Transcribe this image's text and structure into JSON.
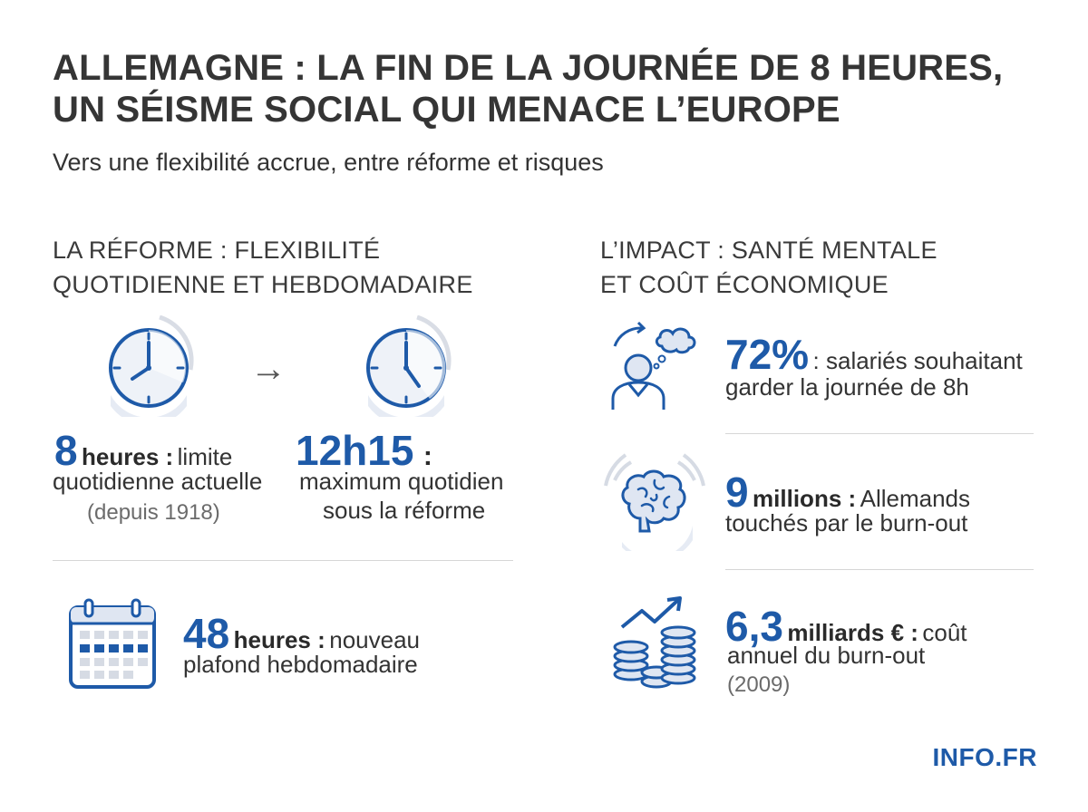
{
  "header": {
    "title_line1": "ALLEMAGNE : LA FIN DE LA JOURNÉE DE 8 HEURES,",
    "title_line2": "UN SÉISME SOCIAL QUI MENACE L’EUROPE",
    "subtitle": "Vers une flexibilité accrue, entre réforme et risques"
  },
  "left": {
    "heading_line1": "LA RÉFORME : FLEXIBILITÉ",
    "heading_line2": "QUOTIDIENNE ET HEBDOMADAIRE",
    "arrow": "→",
    "current": {
      "value": "8",
      "unit": "heures :",
      "text1": "limite",
      "text2": "quotidienne actuelle",
      "note": "(depuis 1918)"
    },
    "reform": {
      "value": "12h15",
      "sep": ":",
      "text1": "maximum quotidien",
      "text2": "sous la réforme"
    },
    "weekly": {
      "value": "48",
      "unit": "heures :",
      "text1": "nouveau",
      "text2": "plafond hebdomadaire"
    }
  },
  "right": {
    "heading_line1": "L’IMPACT : SANTÉ MENTALE",
    "heading_line2": "ET COÛT ÉCONOMIQUE",
    "stat1": {
      "value": "72%",
      "text1": ": salariés souhaitant",
      "text2": "garder la journée de 8h"
    },
    "stat2": {
      "value": "9",
      "unit": "millions :",
      "text1": "Allemands",
      "text2": "touchés par le burn-out"
    },
    "stat3": {
      "value": "6,3",
      "unit": "milliards € :",
      "text1": "coût",
      "text2": "annuel du burn-out",
      "note": "(2009)"
    }
  },
  "icons": {
    "clock_current": "clock-icon",
    "clock_reform": "clock-icon",
    "calendar": "calendar-icon",
    "person_thought": "person-thinking-icon",
    "brain": "brain-icon",
    "coins": "coins-growth-icon"
  },
  "colors": {
    "accent": "#1e5aa8",
    "light_accent": "#d9e2f1",
    "text": "#333333"
  },
  "brand": "INFO.FR"
}
